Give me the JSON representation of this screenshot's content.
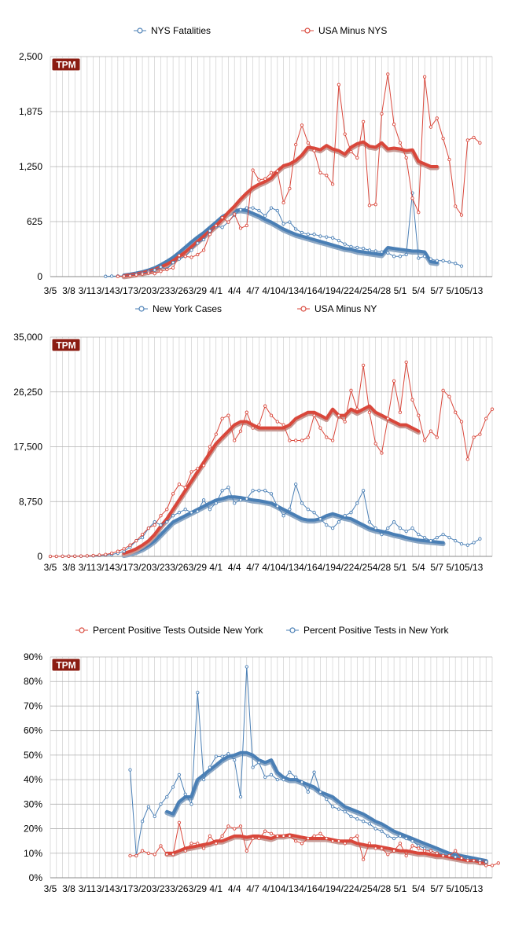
{
  "colors": {
    "blue": "#4a7fb5",
    "red": "#d9473b",
    "grid": "#c8c8c8",
    "badge": "#8b1c12"
  },
  "badge": "TPM",
  "x_labels": [
    "3/5",
    "3/8",
    "3/11",
    "3/14",
    "3/17",
    "3/20",
    "3/23",
    "3/26",
    "3/29",
    "4/1",
    "4/4",
    "4/7",
    "4/10",
    "4/13",
    "4/16",
    "4/19",
    "4/22",
    "4/25",
    "4/28",
    "5/1",
    "5/4",
    "5/7",
    "5/10",
    "5/13"
  ],
  "chart_data": [
    {
      "type": "line",
      "legend": [
        "NYS Fatalities",
        "USA Minus NYS"
      ],
      "yticks": [
        "0",
        "625",
        "1,250",
        "1,875",
        "2,500"
      ],
      "ylim": [
        0,
        2500
      ],
      "series": [
        {
          "name": "NYS Fatalities",
          "kind": "daily",
          "color": "blue",
          "start": 9,
          "values": [
            3,
            5,
            6,
            9,
            15,
            30,
            40,
            55,
            75,
            110,
            85,
            160,
            200,
            230,
            300,
            380,
            420,
            520,
            570,
            560,
            620,
            700,
            760,
            780,
            780,
            750,
            690,
            780,
            750,
            600,
            620,
            540,
            500,
            480,
            480,
            460,
            450,
            440,
            410,
            370,
            340,
            330,
            320,
            300,
            290,
            280,
            270,
            230,
            230,
            250,
            950,
            210,
            230,
            200,
            180,
            180,
            165,
            150,
            120
          ]
        },
        {
          "name": "NYS Fatalities avg",
          "kind": "avg",
          "color": "blue",
          "start": 12,
          "values": [
            18,
            28,
            40,
            55,
            75,
            100,
            135,
            175,
            220,
            275,
            335,
            395,
            450,
            500,
            560,
            620,
            680,
            720,
            750,
            760,
            750,
            720,
            690,
            650,
            620,
            580,
            540,
            510,
            480,
            460,
            440,
            420,
            400,
            380,
            360,
            340,
            320,
            310,
            290,
            280,
            270,
            260,
            250,
            330,
            320,
            310,
            300,
            290,
            290,
            280,
            170,
            160
          ]
        },
        {
          "name": "USA Minus NYS",
          "kind": "daily",
          "color": "red",
          "start": 11,
          "values": [
            3,
            5,
            10,
            20,
            30,
            40,
            35,
            60,
            80,
            100,
            240,
            230,
            220,
            250,
            300,
            480,
            580,
            670,
            620,
            710,
            550,
            580,
            1210,
            1100,
            1110,
            1180,
            1200,
            840,
            1000,
            1500,
            1720,
            1520,
            1430,
            1180,
            1150,
            1050,
            2180,
            1620,
            1420,
            1350,
            1760,
            810,
            820,
            1850,
            2300,
            1730,
            1520,
            1350,
            890,
            730,
            2270,
            1700,
            1800,
            1570,
            1330,
            800,
            700,
            1550,
            1580,
            1520
          ]
        },
        {
          "name": "USA Minus NYS avg",
          "kind": "avg",
          "color": "red",
          "start": 12,
          "values": [
            10,
            20,
            30,
            45,
            60,
            80,
            110,
            140,
            180,
            230,
            280,
            340,
            400,
            460,
            520,
            580,
            650,
            730,
            800,
            880,
            950,
            1010,
            1050,
            1080,
            1120,
            1200,
            1260,
            1280,
            1320,
            1380,
            1470,
            1460,
            1440,
            1490,
            1450,
            1430,
            1390,
            1470,
            1510,
            1530,
            1480,
            1470,
            1520,
            1450,
            1460,
            1450,
            1430,
            1440,
            1310,
            1280,
            1250,
            1250
          ]
        }
      ]
    },
    {
      "type": "line",
      "legend": [
        "New York Cases",
        "USA Minus NY"
      ],
      "yticks": [
        "0",
        "8,750",
        "17,500",
        "26,250",
        "35,000"
      ],
      "ylim": [
        0,
        35000
      ],
      "series": [
        {
          "name": "New York Cases",
          "kind": "daily",
          "color": "blue",
          "start": 0,
          "values": [
            0,
            5,
            10,
            20,
            30,
            40,
            60,
            90,
            150,
            200,
            300,
            500,
            800,
            1500,
            2500,
            3000,
            4500,
            5500,
            5000,
            5500,
            6500,
            7000,
            7500,
            7000,
            7200,
            9000,
            7500,
            8500,
            10500,
            11000,
            8500,
            9000,
            9200,
            10500,
            10500,
            10500,
            10000,
            8000,
            6500,
            7500,
            11500,
            8500,
            7500,
            7000,
            6000,
            5000,
            4500,
            5500,
            6500,
            7000,
            8500,
            10500,
            5500,
            4500,
            3500,
            4500,
            5500,
            4500,
            4000,
            4500,
            3500,
            3000,
            2500,
            3000,
            3500,
            3000,
            2500,
            2000,
            1800,
            2200,
            2800
          ]
        },
        {
          "name": "New York Cases avg",
          "kind": "avg",
          "color": "blue",
          "start": 12,
          "values": [
            300,
            500,
            800,
            1200,
            1800,
            2500,
            3500,
            4500,
            5500,
            6000,
            6500,
            7000,
            7500,
            8000,
            8500,
            9000,
            9200,
            9500,
            9500,
            9400,
            9200,
            9000,
            8900,
            8700,
            8500,
            8000,
            7500,
            7000,
            6500,
            6000,
            5800,
            5800,
            6000,
            6500,
            6800,
            6500,
            6200,
            6000,
            5500,
            5000,
            4500,
            4200,
            4000,
            3800,
            3500,
            3300,
            3000,
            2800,
            2600,
            2500,
            2400,
            2300,
            2200
          ]
        },
        {
          "name": "USA Minus NY",
          "kind": "daily",
          "color": "red",
          "start": 0,
          "values": [
            0,
            5,
            10,
            20,
            30,
            50,
            80,
            120,
            200,
            300,
            500,
            800,
            1200,
            1800,
            2500,
            3500,
            4500,
            5000,
            6500,
            7500,
            10000,
            11500,
            11000,
            13500,
            14000,
            14500,
            17500,
            19500,
            22000,
            22500,
            18500,
            20000,
            23000,
            20500,
            21000,
            24000,
            22500,
            21500,
            21000,
            18500,
            18500,
            18500,
            19000,
            22500,
            20500,
            19000,
            18500,
            22500,
            21500,
            26500,
            23500,
            30500,
            23000,
            18000,
            16500,
            22000,
            28000,
            23000,
            31000,
            25000,
            22500,
            18500,
            20000,
            19000,
            26500,
            25500,
            23000,
            21500,
            15500,
            19000,
            19500,
            22000,
            23500
          ]
        },
        {
          "name": "USA Minus NY avg",
          "kind": "avg",
          "color": "red",
          "start": 12,
          "values": [
            500,
            800,
            1200,
            1800,
            2500,
            3500,
            4800,
            6000,
            7500,
            9000,
            10500,
            12000,
            13500,
            15000,
            16500,
            18000,
            19000,
            20000,
            21000,
            21500,
            21500,
            21000,
            20500,
            20500,
            20500,
            20500,
            20500,
            21000,
            22000,
            22500,
            23000,
            23000,
            22500,
            22000,
            23500,
            22500,
            22500,
            23500,
            23000,
            23500,
            24000,
            23000,
            22500,
            22000,
            21500,
            21000,
            21000,
            20500,
            20000
          ]
        }
      ]
    },
    {
      "type": "line",
      "legend": [
        "Percent Positive Tests Outside New York",
        "Percent Positive Tests in New York"
      ],
      "yticks": [
        "0%",
        "10%",
        "20%",
        "30%",
        "40%",
        "50%",
        "60%",
        "70%",
        "80%",
        "90%"
      ],
      "ylim": [
        0,
        90
      ],
      "series": [
        {
          "name": "Percent Positive Tests in New York",
          "kind": "daily",
          "color": "blue",
          "start": 13,
          "values": [
            44,
            9,
            23,
            29,
            25,
            30,
            33,
            37,
            42,
            34,
            30,
            75.5,
            40,
            45,
            49.5,
            49.5,
            50.5,
            48,
            33,
            86,
            45,
            47,
            41,
            42,
            40,
            40,
            43,
            41,
            39,
            35,
            43,
            35,
            32,
            29,
            28,
            27,
            25,
            24,
            23,
            22,
            20,
            19,
            17,
            16,
            17,
            16,
            15,
            13,
            12,
            11,
            10,
            9.5,
            9,
            8.5,
            8,
            7.5,
            7,
            7,
            6.5
          ]
        },
        {
          "name": "Percent Positive Tests in New York avg",
          "kind": "avg",
          "color": "blue",
          "start": 19,
          "values": [
            27,
            26,
            31,
            33,
            33,
            40,
            42,
            44,
            46,
            48,
            49.5,
            50,
            51,
            51,
            50,
            48,
            47,
            48,
            43,
            41,
            40,
            40,
            39,
            38,
            37,
            35,
            34,
            33,
            31,
            29,
            28,
            27,
            26,
            24.5,
            23,
            22,
            20.5,
            19,
            18,
            17,
            16,
            15,
            14,
            13,
            12,
            11,
            10,
            9.5,
            9,
            8.5,
            8,
            7.5,
            7
          ]
        },
        {
          "name": "Percent Positive Tests Outside New York",
          "kind": "daily",
          "color": "red",
          "start": 13,
          "values": [
            9,
            9,
            11,
            10,
            9.5,
            13,
            9.5,
            9.5,
            22.5,
            11,
            14,
            14,
            12,
            17,
            14,
            17,
            21,
            20,
            21,
            11,
            16,
            16,
            19,
            18,
            17,
            17,
            17,
            15,
            14,
            16,
            17,
            18,
            16,
            15,
            15,
            14,
            16,
            17,
            7.5,
            14,
            12,
            12,
            9.5,
            11,
            14,
            9,
            13,
            12,
            11,
            11,
            10,
            9,
            9,
            11,
            8,
            7,
            7,
            6,
            5,
            5,
            6
          ]
        },
        {
          "name": "Percent Positive Tests Outside New York avg",
          "kind": "avg",
          "color": "red",
          "start": 19,
          "values": [
            10,
            10,
            11,
            12,
            12.5,
            13,
            13.5,
            14,
            15,
            15,
            16,
            17,
            17,
            16.5,
            17,
            17,
            16.5,
            16,
            17,
            17,
            17.5,
            17,
            16.5,
            16,
            16,
            16,
            16,
            15.5,
            15,
            15,
            15,
            14,
            13.5,
            13,
            13,
            12.5,
            12,
            11.5,
            11,
            11,
            10.5,
            10,
            10,
            9.5,
            9,
            9,
            8.5,
            8,
            7.5,
            7,
            7,
            6.5,
            6.5
          ]
        }
      ]
    }
  ]
}
